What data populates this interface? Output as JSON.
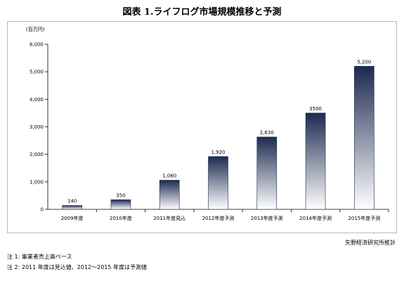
{
  "title": "図表 1.ライフログ市場規模推移と予測",
  "unit_label": "(百万円)",
  "source": "矢野経済研究所推計",
  "notes": [
    "注 1: 事業者売上高ベース",
    "注 2: 2011 年度は見込値、2012～2015 年度は予測値"
  ],
  "chart_data": {
    "type": "bar",
    "title": "図表 1.ライフログ市場規模推移と予測",
    "xlabel": "",
    "ylabel": "(百万円)",
    "categories": [
      "2009年度",
      "2010年度",
      "2011年度見込",
      "2012年度予測",
      "2013年度予測",
      "2014年度予測",
      "2015年度予測"
    ],
    "values": [
      140,
      350,
      1060,
      1920,
      2630,
      3500,
      5200
    ],
    "value_labels": [
      "140",
      "350",
      "1,060",
      "1,920",
      "2,630",
      "3500",
      "5,200"
    ],
    "ylim": [
      0,
      6000
    ],
    "yticks": [
      0,
      1000,
      2000,
      3000,
      4000,
      5000,
      6000
    ],
    "ytick_labels": [
      "0",
      "1,000",
      "2,000",
      "3,000",
      "4,000",
      "5,000",
      "6,000"
    ],
    "grid": false,
    "bar_gradient": [
      "#ffffff",
      "#1c2a50"
    ]
  }
}
